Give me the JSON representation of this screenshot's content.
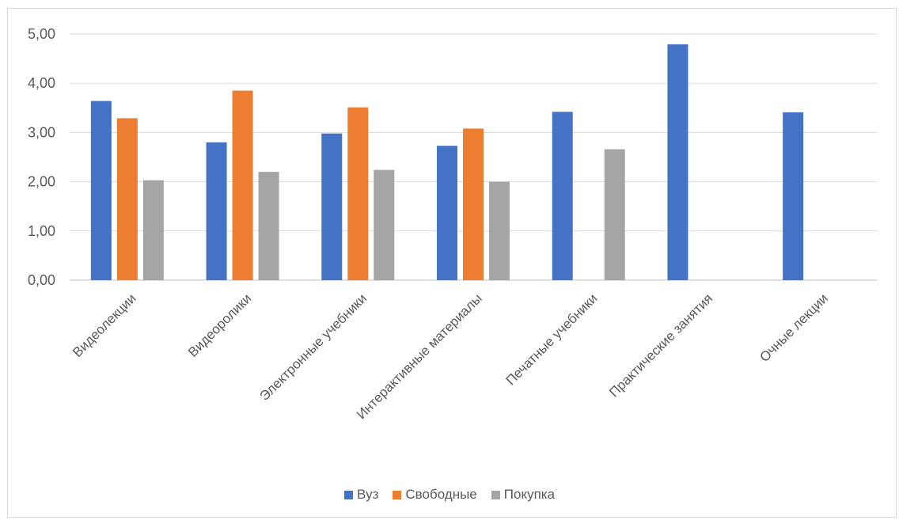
{
  "chart_data": {
    "type": "bar",
    "categories": [
      "Видеолекции",
      "Видеоролики",
      "Электронные учебники",
      "Интерактивные материалы",
      "Печатные учебники",
      "Практические занятия",
      "Очные лекции"
    ],
    "series": [
      {
        "name": "Вуз",
        "color": "#4472C4",
        "values": [
          3.64,
          2.8,
          2.98,
          2.73,
          3.42,
          4.79,
          3.41
        ]
      },
      {
        "name": "Свободные",
        "color": "#ED7D31",
        "values": [
          3.29,
          3.85,
          3.51,
          3.08,
          null,
          null,
          null
        ]
      },
      {
        "name": "Покупка",
        "color": "#A5A5A5",
        "values": [
          2.03,
          2.2,
          2.24,
          2.0,
          2.66,
          null,
          null
        ]
      }
    ],
    "y_ticks": [
      "0,00",
      "1,00",
      "2,00",
      "3,00",
      "4,00",
      "5,00"
    ],
    "ylim": [
      0,
      5
    ],
    "grid": true,
    "legend_position": "bottom"
  }
}
